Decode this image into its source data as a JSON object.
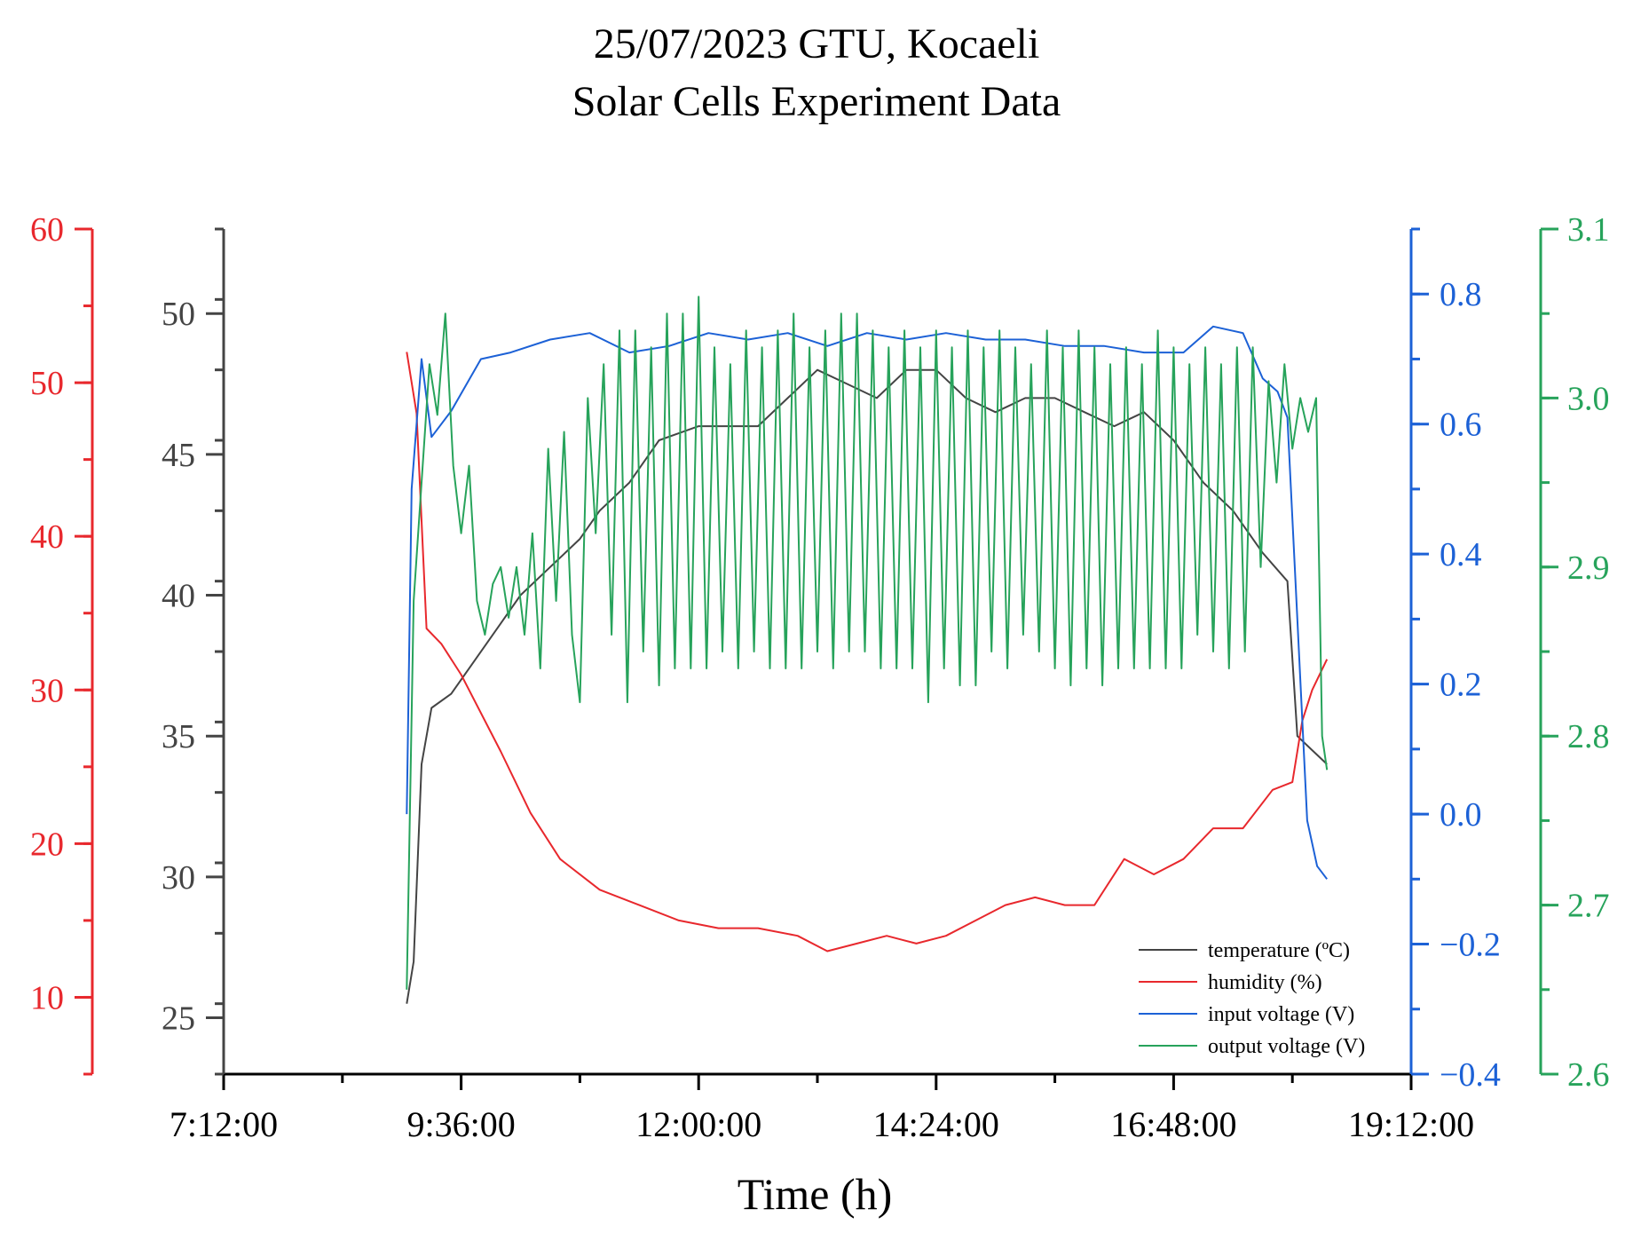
{
  "chart_data": {
    "type": "line",
    "title_line1": "25/07/2023 GTU, Kocaeli",
    "title_line2": "Solar Cells Experiment Data",
    "xlabel": "Time (h)",
    "x_ticks": [
      "7:12:00",
      "9:36:00",
      "12:00:00",
      "14:24:00",
      "16:48:00",
      "19:12:00"
    ],
    "xlim_hours": [
      7.2,
      19.2
    ],
    "axes": {
      "red": {
        "color": "#e8282d",
        "ylim": [
          5,
          60
        ],
        "ticks": [
          "10",
          "20",
          "30",
          "40",
          "50",
          "60"
        ]
      },
      "black": {
        "color": "#444444",
        "ylim": [
          23,
          53
        ],
        "ticks": [
          "25",
          "30",
          "35",
          "40",
          "45",
          "50"
        ]
      },
      "blue": {
        "color": "#1c61d6",
        "ylim": [
          -0.4,
          0.9
        ],
        "ticks": [
          "−0.4",
          "−0.2",
          "0.0",
          "0.2",
          "0.4",
          "0.6",
          "0.8"
        ]
      },
      "green": {
        "color": "#27a35b",
        "ylim": [
          2.6,
          3.1
        ],
        "ticks": [
          "2.6",
          "2.7",
          "2.8",
          "2.9",
          "3.0",
          "3.1"
        ]
      }
    },
    "series": [
      {
        "name": "temperature (ºC)",
        "axis": "black",
        "color": "#444444",
        "x": [
          9.05,
          9.12,
          9.2,
          9.3,
          9.5,
          9.7,
          10.0,
          10.2,
          10.5,
          10.8,
          11.0,
          11.3,
          11.6,
          12.0,
          12.3,
          12.6,
          12.9,
          13.2,
          13.5,
          13.8,
          14.1,
          14.4,
          14.7,
          15.0,
          15.3,
          15.6,
          15.9,
          16.2,
          16.5,
          16.8,
          17.1,
          17.4,
          17.7,
          17.95,
          18.05,
          18.2,
          18.35
        ],
        "values": [
          25.5,
          27,
          34,
          36,
          36.5,
          37.5,
          39,
          40,
          41,
          42,
          43,
          44,
          45.5,
          46,
          46,
          46,
          47,
          48,
          47.5,
          47,
          48,
          48,
          47,
          46.5,
          47,
          47,
          46.5,
          46,
          46.5,
          45.5,
          44,
          43,
          41.5,
          40.5,
          35,
          34.5,
          34
        ]
      },
      {
        "name": "humidity (%)",
        "axis": "red",
        "color": "#e8282d",
        "x": [
          9.05,
          9.15,
          9.25,
          9.4,
          9.6,
          10.0,
          10.3,
          10.6,
          11.0,
          11.4,
          11.8,
          12.2,
          12.6,
          13.0,
          13.3,
          13.6,
          13.9,
          14.2,
          14.5,
          14.8,
          15.1,
          15.4,
          15.7,
          16.0,
          16.3,
          16.6,
          16.9,
          17.2,
          17.5,
          17.8,
          18.0,
          18.1,
          18.2,
          18.35
        ],
        "values": [
          52,
          48,
          34,
          33,
          31,
          26,
          22,
          19,
          17,
          16,
          15,
          14.5,
          14.5,
          14,
          13,
          13.5,
          14,
          13.5,
          14,
          15,
          16,
          16.5,
          16,
          16,
          19,
          18,
          19,
          21,
          21,
          23.5,
          24,
          28,
          30,
          32
        ]
      },
      {
        "name": "input voltage (V)",
        "axis": "blue",
        "color": "#1c61d6",
        "x": [
          9.05,
          9.1,
          9.15,
          9.2,
          9.3,
          9.5,
          9.8,
          10.1,
          10.5,
          10.9,
          11.3,
          11.7,
          12.1,
          12.5,
          12.9,
          13.3,
          13.7,
          14.1,
          14.5,
          14.9,
          15.3,
          15.7,
          16.1,
          16.5,
          16.9,
          17.2,
          17.5,
          17.7,
          17.85,
          17.95,
          18.05,
          18.15,
          18.25,
          18.35
        ],
        "values": [
          0.0,
          0.5,
          0.6,
          0.7,
          0.58,
          0.62,
          0.7,
          0.71,
          0.73,
          0.74,
          0.71,
          0.72,
          0.74,
          0.73,
          0.74,
          0.72,
          0.74,
          0.73,
          0.74,
          0.73,
          0.73,
          0.72,
          0.72,
          0.71,
          0.71,
          0.75,
          0.74,
          0.67,
          0.65,
          0.61,
          0.3,
          -0.01,
          -0.08,
          -0.1
        ]
      },
      {
        "name": "output voltage (V)",
        "axis": "green",
        "color": "#27a35b",
        "x": [
          9.05,
          9.12,
          9.2,
          9.28,
          9.36,
          9.44,
          9.52,
          9.6,
          9.68,
          9.76,
          9.84,
          9.92,
          10.0,
          10.08,
          10.16,
          10.24,
          10.32,
          10.4,
          10.48,
          10.56,
          10.64,
          10.72,
          10.8,
          10.88,
          10.96,
          11.04,
          11.12,
          11.2,
          11.28,
          11.36,
          11.44,
          11.52,
          11.6,
          11.68,
          11.76,
          11.84,
          11.92,
          12.0,
          12.08,
          12.16,
          12.24,
          12.32,
          12.4,
          12.48,
          12.56,
          12.64,
          12.72,
          12.8,
          12.88,
          12.96,
          13.04,
          13.12,
          13.2,
          13.28,
          13.36,
          13.44,
          13.52,
          13.6,
          13.68,
          13.76,
          13.84,
          13.92,
          14.0,
          14.08,
          14.16,
          14.24,
          14.32,
          14.4,
          14.48,
          14.56,
          14.64,
          14.72,
          14.8,
          14.88,
          14.96,
          15.04,
          15.12,
          15.2,
          15.28,
          15.36,
          15.44,
          15.52,
          15.6,
          15.68,
          15.76,
          15.84,
          15.92,
          16.0,
          16.08,
          16.16,
          16.24,
          16.32,
          16.4,
          16.48,
          16.56,
          16.64,
          16.72,
          16.8,
          16.88,
          16.96,
          17.04,
          17.12,
          17.2,
          17.28,
          17.36,
          17.44,
          17.52,
          17.6,
          17.68,
          17.76,
          17.84,
          17.92,
          18.0,
          18.08,
          18.16,
          18.24,
          18.3,
          18.35
        ],
        "values": [
          2.65,
          2.88,
          2.95,
          3.02,
          2.99,
          3.05,
          2.96,
          2.92,
          2.96,
          2.88,
          2.86,
          2.89,
          2.9,
          2.87,
          2.9,
          2.86,
          2.92,
          2.84,
          2.97,
          2.88,
          2.98,
          2.86,
          2.82,
          3.0,
          2.92,
          3.02,
          2.86,
          3.04,
          2.82,
          3.04,
          2.85,
          3.03,
          2.83,
          3.05,
          2.84,
          3.05,
          2.84,
          3.06,
          2.84,
          3.03,
          2.85,
          3.02,
          2.84,
          3.04,
          2.85,
          3.03,
          2.84,
          3.04,
          2.84,
          3.05,
          2.84,
          3.03,
          2.85,
          3.04,
          2.84,
          3.05,
          2.85,
          3.05,
          2.85,
          3.04,
          2.84,
          3.03,
          2.84,
          3.04,
          2.84,
          3.03,
          2.82,
          3.04,
          2.84,
          3.03,
          2.83,
          3.04,
          2.83,
          3.03,
          2.85,
          3.04,
          2.84,
          3.03,
          2.86,
          3.02,
          2.85,
          3.04,
          2.84,
          3.03,
          2.83,
          3.04,
          2.84,
          3.03,
          2.83,
          3.02,
          2.84,
          3.03,
          2.84,
          3.02,
          2.84,
          3.04,
          2.84,
          3.03,
          2.84,
          3.02,
          2.86,
          3.03,
          2.85,
          3.02,
          2.84,
          3.03,
          2.85,
          3.03,
          2.9,
          3.01,
          2.95,
          3.02,
          2.97,
          3.0,
          2.98,
          3.0,
          2.8,
          2.78
        ]
      }
    ],
    "legend": {
      "position": "bottom-right",
      "items": [
        "temperature (ºC)",
        "humidity (%)",
        "input voltage (V)",
        "output voltage (V)"
      ]
    }
  }
}
